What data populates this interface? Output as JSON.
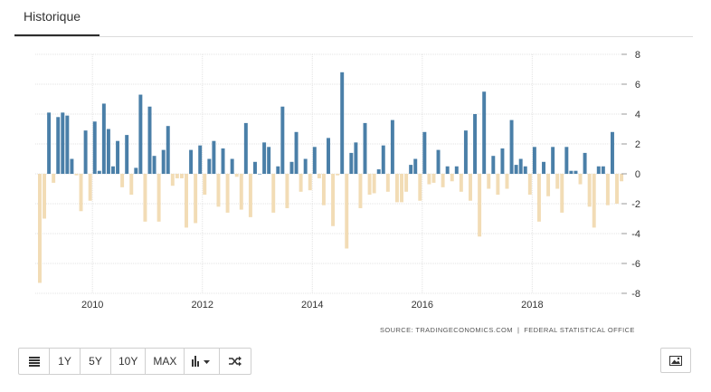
{
  "tab": {
    "label": "Historique"
  },
  "source": {
    "label": "SOURCE:",
    "provider": "TRADINGECONOMICS.COM",
    "separator": "|",
    "agency": "FEDERAL STATISTICAL OFFICE"
  },
  "toolbar": {
    "buttons": [
      {
        "id": "table",
        "icon": "table-icon"
      },
      {
        "id": "1y",
        "label": "1Y"
      },
      {
        "id": "5y",
        "label": "5Y"
      },
      {
        "id": "10y",
        "label": "10Y"
      },
      {
        "id": "max",
        "label": "MAX"
      },
      {
        "id": "chart-type",
        "icon": "bar-chart-icon",
        "dropdown": true
      },
      {
        "id": "compare",
        "icon": "shuffle-icon"
      }
    ],
    "export_icon": "image-icon"
  },
  "colors": {
    "positive": "#4a7fa8",
    "negative": "#f2dcb5",
    "grid": "#e3e3e3",
    "text": "#333333"
  },
  "chart_data": {
    "type": "bar",
    "x_axis": {
      "type": "date",
      "ticks": [
        "2010",
        "2012",
        "2014",
        "2016",
        "2018"
      ],
      "range": [
        "2009-01",
        "2019-08"
      ]
    },
    "y_axis": {
      "range": [
        -8,
        8
      ],
      "ticks": [
        8,
        6,
        4,
        2,
        0,
        -2,
        -4,
        -6,
        -8
      ],
      "position": "right"
    },
    "grid": true,
    "legend": "none",
    "x": [
      "2009-01",
      "2009-02",
      "2009-03",
      "2009-04",
      "2009-05",
      "2009-06",
      "2009-07",
      "2009-08",
      "2009-09",
      "2009-10",
      "2009-11",
      "2009-12",
      "2010-01",
      "2010-02",
      "2010-03",
      "2010-04",
      "2010-05",
      "2010-06",
      "2010-07",
      "2010-08",
      "2010-09",
      "2010-10",
      "2010-11",
      "2010-12",
      "2011-01",
      "2011-02",
      "2011-03",
      "2011-04",
      "2011-05",
      "2011-06",
      "2011-07",
      "2011-08",
      "2011-09",
      "2011-10",
      "2011-11",
      "2011-12",
      "2012-01",
      "2012-02",
      "2012-03",
      "2012-04",
      "2012-05",
      "2012-06",
      "2012-07",
      "2012-08",
      "2012-09",
      "2012-10",
      "2012-11",
      "2012-12",
      "2013-01",
      "2013-02",
      "2013-03",
      "2013-04",
      "2013-05",
      "2013-06",
      "2013-07",
      "2013-08",
      "2013-09",
      "2013-10",
      "2013-11",
      "2013-12",
      "2014-01",
      "2014-02",
      "2014-03",
      "2014-04",
      "2014-05",
      "2014-06",
      "2014-07",
      "2014-08",
      "2014-09",
      "2014-10",
      "2014-11",
      "2014-12",
      "2015-01",
      "2015-02",
      "2015-03",
      "2015-04",
      "2015-05",
      "2015-06",
      "2015-07",
      "2015-08",
      "2015-09",
      "2015-10",
      "2015-11",
      "2015-12",
      "2016-01",
      "2016-02",
      "2016-03",
      "2016-04",
      "2016-05",
      "2016-06",
      "2016-07",
      "2016-08",
      "2016-09",
      "2016-10",
      "2016-11",
      "2016-12",
      "2017-01",
      "2017-02",
      "2017-03",
      "2017-04",
      "2017-05",
      "2017-06",
      "2017-07",
      "2017-08",
      "2017-09",
      "2017-10",
      "2017-11",
      "2017-12",
      "2018-01",
      "2018-02",
      "2018-03",
      "2018-04",
      "2018-05",
      "2018-06",
      "2018-07",
      "2018-08",
      "2018-09",
      "2018-10",
      "2018-11",
      "2018-12",
      "2019-01",
      "2019-02",
      "2019-03",
      "2019-04",
      "2019-05",
      "2019-06",
      "2019-07",
      "2019-08"
    ],
    "values": [
      -7.3,
      -3.0,
      4.1,
      -0.6,
      3.8,
      4.1,
      3.9,
      1.0,
      -0.1,
      -2.5,
      2.9,
      -1.8,
      3.5,
      0.2,
      4.7,
      3.0,
      0.5,
      2.2,
      -0.9,
      2.6,
      -1.4,
      0.4,
      5.3,
      -3.2,
      4.5,
      1.2,
      -3.2,
      1.6,
      3.2,
      -0.8,
      -0.3,
      -0.3,
      -3.6,
      1.6,
      -3.3,
      1.9,
      -1.4,
      1.0,
      2.2,
      -2.2,
      1.7,
      -2.6,
      1.0,
      -0.2,
      -2.4,
      3.4,
      -2.9,
      0.8,
      0.0,
      2.1,
      1.8,
      -2.6,
      0.5,
      4.5,
      -2.3,
      0.8,
      2.8,
      -1.2,
      1.0,
      -1.1,
      1.8,
      -0.3,
      -2.1,
      2.4,
      -3.5,
      -0.1,
      6.8,
      -5.0,
      1.4,
      2.1,
      -2.3,
      3.4,
      -1.4,
      -1.3,
      0.3,
      1.9,
      -1.2,
      3.6,
      -1.9,
      -1.9,
      -1.2,
      0.6,
      1.0,
      -1.8,
      2.8,
      -0.7,
      -0.6,
      1.6,
      -0.9,
      0.5,
      -0.5,
      0.5,
      -1.2,
      2.9,
      -1.8,
      4.0,
      -4.2,
      5.5,
      -1.0,
      1.2,
      -1.4,
      1.7,
      -1.0,
      3.6,
      0.6,
      1.0,
      0.5,
      -1.4,
      1.8,
      -3.2,
      0.8,
      -1.5,
      1.8,
      -1.0,
      -2.6,
      1.8,
      0.2,
      0.2,
      -0.7,
      1.4,
      -2.2,
      -3.6,
      0.5,
      0.5,
      -2.1,
      2.8,
      -2.0,
      -0.5
    ]
  }
}
